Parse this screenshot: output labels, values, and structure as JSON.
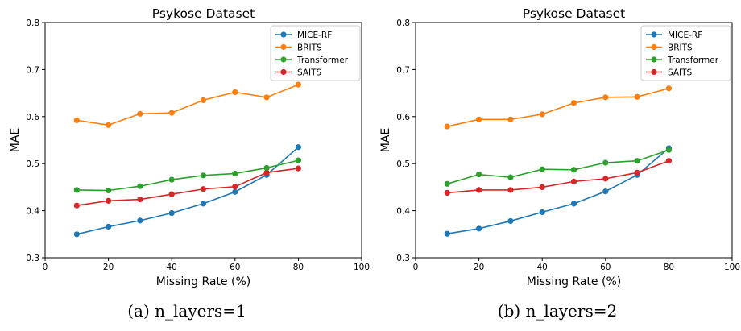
{
  "chart_data": [
    {
      "type": "line",
      "title": "Psykose Dataset",
      "xlabel": "Missing Rate (%)",
      "ylabel": "MAE",
      "xlim": [
        0,
        100
      ],
      "ylim": [
        0.3,
        0.8
      ],
      "xticks": [
        0,
        20,
        40,
        60,
        80,
        100
      ],
      "yticks": [
        0.3,
        0.4,
        0.5,
        0.6,
        0.7,
        0.8
      ],
      "legend": "top-right",
      "grid": false,
      "caption": "(a) n_layers=1",
      "x": [
        10,
        20,
        30,
        40,
        50,
        60,
        70,
        80
      ],
      "series": [
        {
          "name": "MICE-RF",
          "color": "#1f77b4",
          "values": [
            0.35,
            0.366,
            0.379,
            0.395,
            0.415,
            0.44,
            0.476,
            0.535
          ]
        },
        {
          "name": "BRITS",
          "color": "#ff7f0e",
          "values": [
            0.592,
            0.582,
            0.606,
            0.608,
            0.635,
            0.652,
            0.641,
            0.668
          ]
        },
        {
          "name": "Transformer",
          "color": "#2ca02c",
          "values": [
            0.444,
            0.443,
            0.452,
            0.466,
            0.475,
            0.479,
            0.491,
            0.507
          ]
        },
        {
          "name": "SAITS",
          "color": "#d62728",
          "values": [
            0.411,
            0.421,
            0.424,
            0.435,
            0.446,
            0.451,
            0.481,
            0.49
          ]
        }
      ]
    },
    {
      "type": "line",
      "title": "Psykose Dataset",
      "xlabel": "Missing Rate (%)",
      "ylabel": "MAE",
      "xlim": [
        0,
        100
      ],
      "ylim": [
        0.3,
        0.8
      ],
      "xticks": [
        0,
        20,
        40,
        60,
        80,
        100
      ],
      "yticks": [
        0.3,
        0.4,
        0.5,
        0.6,
        0.7,
        0.8
      ],
      "legend": "top-right",
      "grid": false,
      "caption": "(b) n_layers=2",
      "x": [
        10,
        20,
        30,
        40,
        50,
        60,
        70,
        80
      ],
      "series": [
        {
          "name": "MICE-RF",
          "color": "#1f77b4",
          "values": [
            0.351,
            0.362,
            0.378,
            0.397,
            0.415,
            0.441,
            0.476,
            0.533
          ]
        },
        {
          "name": "BRITS",
          "color": "#ff7f0e",
          "values": [
            0.579,
            0.594,
            0.594,
            0.605,
            0.629,
            0.641,
            0.642,
            0.66
          ]
        },
        {
          "name": "Transformer",
          "color": "#2ca02c",
          "values": [
            0.457,
            0.477,
            0.471,
            0.488,
            0.487,
            0.502,
            0.506,
            0.529
          ]
        },
        {
          "name": "SAITS",
          "color": "#d62728",
          "values": [
            0.438,
            0.444,
            0.444,
            0.45,
            0.462,
            0.468,
            0.481,
            0.506
          ]
        }
      ]
    }
  ]
}
